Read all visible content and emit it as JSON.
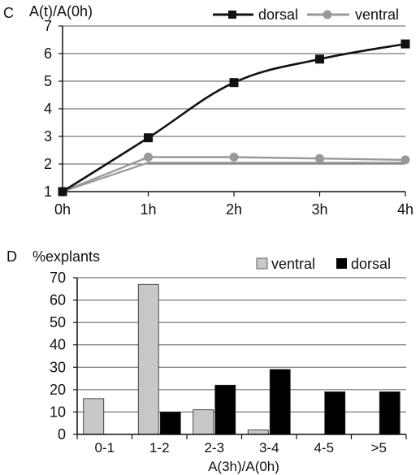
{
  "chart_data": [
    {
      "panel": "C",
      "type": "line",
      "ylabel": "A(t)/A(0h)",
      "categories": [
        "0h",
        "1h",
        "2h",
        "3h",
        "4h"
      ],
      "ylim": [
        1,
        7
      ],
      "yticks": [
        1,
        2,
        3,
        4,
        5,
        6,
        7
      ],
      "grid": true,
      "legend_position": "top-right",
      "series": [
        {
          "name": "dorsal",
          "color": "#111111",
          "marker": "square",
          "values": [
            1.0,
            2.95,
            4.95,
            5.8,
            6.35
          ]
        },
        {
          "name": "ventral",
          "color": "#999999",
          "marker": "circle",
          "values": [
            1.0,
            2.25,
            2.25,
            2.2,
            2.15
          ]
        }
      ],
      "ventral_lower_values": [
        1.0,
        2.05,
        2.05,
        2.05,
        2.05
      ]
    },
    {
      "panel": "D",
      "type": "bar",
      "ylabel": "%explants",
      "xlabel": "A(3h)/A(0h)",
      "categories": [
        "0-1",
        "1-2",
        "2-3",
        "3-4",
        "4-5",
        ">5"
      ],
      "ylim": [
        0,
        70
      ],
      "yticks": [
        0,
        10,
        20,
        30,
        40,
        50,
        60,
        70
      ],
      "grid": true,
      "legend_position": "top-right",
      "series": [
        {
          "name": "ventral",
          "color": "#c8c8c8",
          "values": [
            16,
            67,
            11,
            2,
            0,
            0
          ]
        },
        {
          "name": "dorsal",
          "color": "#000000",
          "values": [
            0,
            10,
            22,
            29,
            19,
            19
          ]
        }
      ]
    }
  ]
}
